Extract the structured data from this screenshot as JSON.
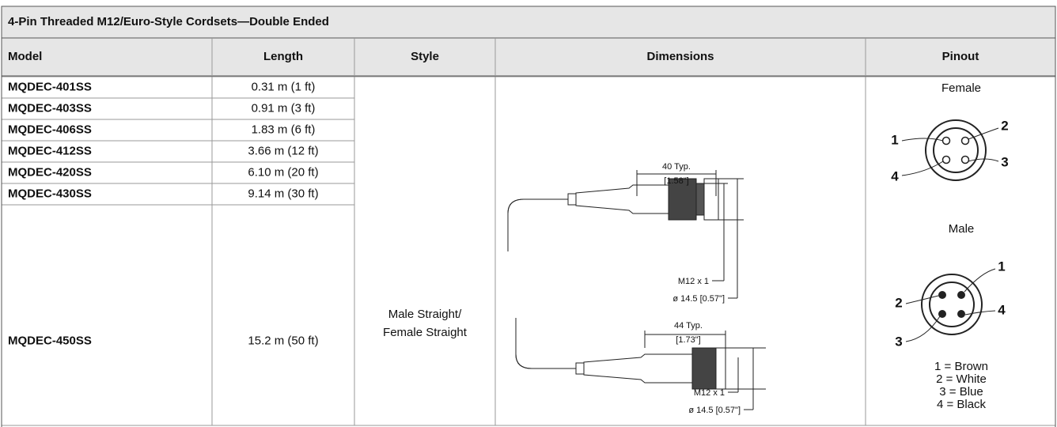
{
  "title": "4-Pin Threaded M12/Euro-Style Cordsets—Double Ended",
  "table": {
    "headers": [
      "Model",
      "Length",
      "Style",
      "Dimensions",
      "Pinout"
    ],
    "rows": [
      [
        "MQDEC-401SS",
        "0.31 m (1 ft)"
      ],
      [
        "MQDEC-403SS",
        "0.91 m (3 ft)"
      ],
      [
        "MQDEC-406SS",
        "1.83 m (6 ft)"
      ],
      [
        "MQDEC-412SS",
        "3.66 m (12 ft)"
      ],
      [
        "MQDEC-420SS",
        "6.10 m (20 ft)"
      ],
      [
        "MQDEC-430SS",
        "9.14 m (30 ft)"
      ],
      [
        "MQDEC-450SS",
        "15.2 m (50 ft)"
      ]
    ],
    "style": [
      "Male Straight/",
      "Female Straight"
    ],
    "dimensions": {
      "male": {
        "length": "40 Typ.",
        "length_in": "[1.58\"]",
        "thread": "M12 x 1",
        "diameter": "ø 14.5 [0.57\"]"
      },
      "female": {
        "length": "44 Typ.",
        "length_in": "[1.73\"]",
        "thread": "M12 x 1",
        "diameter": "ø 14.5 [0.57\"]"
      }
    },
    "pinout": {
      "female": {
        "label": "Female",
        "pins": [
          "1",
          "2",
          "3",
          "4"
        ]
      },
      "male": {
        "label": "Male",
        "pins": [
          "1",
          "2",
          "3",
          "4"
        ]
      },
      "wires": [
        "1 = Brown",
        "2 = White",
        "3 = Blue",
        "4 = Black"
      ]
    }
  }
}
